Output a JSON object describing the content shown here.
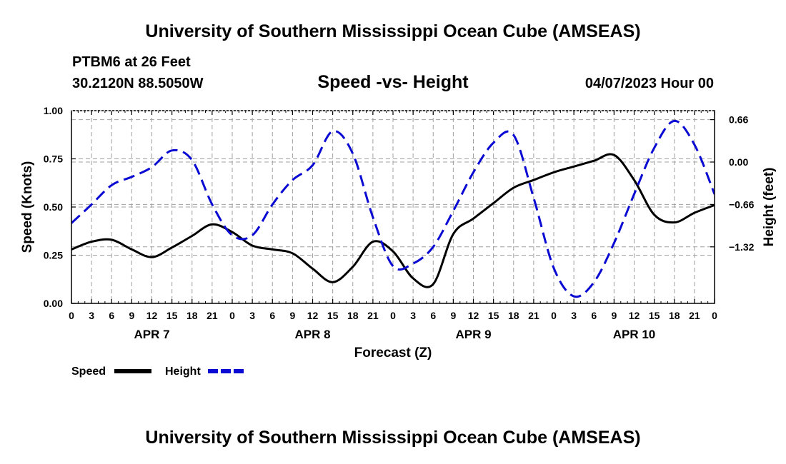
{
  "header": {
    "title": "University of Southern Mississippi Ocean Cube (AMSEAS)",
    "station": "PTBM6 at 26 Feet",
    "coords": "30.2120N  88.5050W",
    "run_time": "04/07/2023 Hour 00"
  },
  "footer": {
    "title": "University of Southern Mississippi Ocean Cube (AMSEAS)"
  },
  "colors": {
    "speed": "#000000",
    "height": "#0a0ad2",
    "grid": "#a0a0a0"
  },
  "chart_data": {
    "type": "line",
    "title": "Speed -vs- Height",
    "xlabel": "Forecast (Z)",
    "ylabel": "Speed (Knots)",
    "ylabel_right": "Height (feet)",
    "xlim": [
      0,
      96
    ],
    "ylim": [
      0,
      1
    ],
    "ylim_right": [
      -2.2,
      0.8
    ],
    "x_ticks": [
      0,
      3,
      6,
      9,
      12,
      15,
      18,
      21,
      24,
      27,
      30,
      33,
      36,
      39,
      42,
      45,
      48,
      51,
      54,
      57,
      60,
      63,
      66,
      69,
      72,
      75,
      78,
      81,
      84,
      87,
      90,
      93,
      96
    ],
    "x_tick_labels": [
      "0",
      "3",
      "6",
      "9",
      "12",
      "15",
      "18",
      "21",
      "0",
      "3",
      "6",
      "9",
      "12",
      "15",
      "18",
      "21",
      "0",
      "3",
      "6",
      "9",
      "12",
      "15",
      "18",
      "21",
      "0",
      "3",
      "6",
      "9",
      "12",
      "15",
      "18",
      "21",
      "0"
    ],
    "y_ticks": [
      0.0,
      0.25,
      0.5,
      0.75,
      1.0
    ],
    "y_tick_labels": [
      "0.00",
      "0.25",
      "0.50",
      "0.75",
      "1.00"
    ],
    "y_ticks_right": [
      -1.32,
      -0.66,
      0.0,
      0.66
    ],
    "y_tick_labels_right": [
      "−1.32",
      "−0.66",
      "0.00",
      "0.66"
    ],
    "day_labels": [
      {
        "label": "APR 7",
        "x": 12
      },
      {
        "label": "APR 8",
        "x": 36
      },
      {
        "label": "APR 9",
        "x": 60
      },
      {
        "label": "APR 10",
        "x": 84
      }
    ],
    "grid": true,
    "legend_position": "bottom-left",
    "series": [
      {
        "name": "Speed",
        "axis": "left",
        "style": "solid",
        "x": [
          0,
          3,
          6,
          9,
          12,
          15,
          18,
          21,
          24,
          27,
          30,
          33,
          36,
          39,
          42,
          45,
          48,
          51,
          54,
          57,
          60,
          63,
          66,
          69,
          72,
          75,
          78,
          81,
          84,
          87,
          90,
          93,
          96
        ],
        "values": [
          0.28,
          0.32,
          0.33,
          0.28,
          0.24,
          0.29,
          0.35,
          0.41,
          0.37,
          0.3,
          0.28,
          0.26,
          0.18,
          0.11,
          0.19,
          0.32,
          0.27,
          0.13,
          0.1,
          0.36,
          0.44,
          0.52,
          0.6,
          0.64,
          0.68,
          0.71,
          0.74,
          0.77,
          0.64,
          0.46,
          0.42,
          0.47,
          0.51
        ]
      },
      {
        "name": "Height",
        "axis": "right",
        "style": "dashed",
        "x": [
          0,
          3,
          6,
          9,
          12,
          15,
          18,
          21,
          24,
          27,
          30,
          33,
          36,
          39,
          42,
          45,
          48,
          51,
          54,
          57,
          60,
          63,
          66,
          69,
          72,
          75,
          78,
          81,
          84,
          87,
          90,
          93,
          96
        ],
        "values": [
          -0.95,
          -0.66,
          -0.36,
          -0.23,
          -0.08,
          0.18,
          0.03,
          -0.66,
          -1.14,
          -1.14,
          -0.66,
          -0.28,
          -0.05,
          0.48,
          0.13,
          -0.86,
          -1.62,
          -1.58,
          -1.32,
          -0.76,
          -0.16,
          0.3,
          0.42,
          -0.56,
          -1.65,
          -2.09,
          -1.87,
          -1.26,
          -0.5,
          0.22,
          0.64,
          0.27,
          -0.5
        ]
      }
    ]
  }
}
